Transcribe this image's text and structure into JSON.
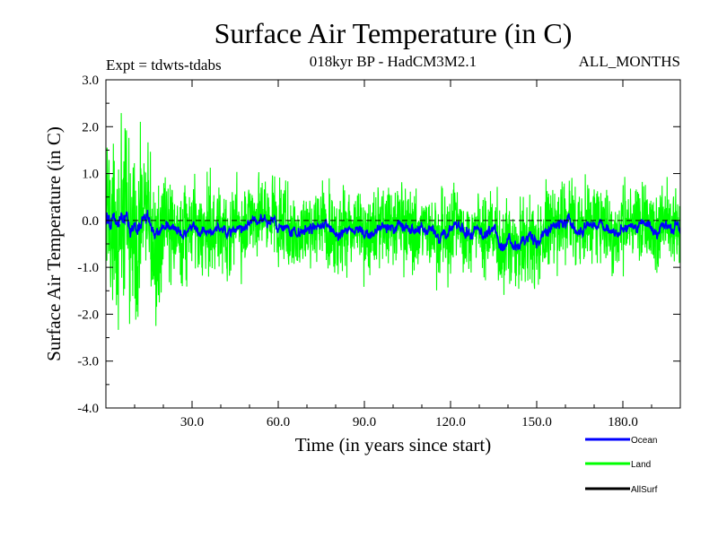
{
  "chart_data": {
    "type": "line",
    "title": "Surface Air Temperature (in C)",
    "subtitle_left": "Expt = tdwts-tdabs",
    "subtitle_center": "018kyr BP - HadCM3M2.1",
    "subtitle_right": "ALL_MONTHS",
    "xlabel": "Time (in years since start)",
    "ylabel": "Surface Air Temperature (in C)",
    "xlim": [
      0,
      200
    ],
    "ylim": [
      -4.0,
      3.0
    ],
    "xticks": [
      30,
      60,
      90,
      120,
      150,
      180
    ],
    "xtick_labels": [
      "30.0",
      "60.0",
      "90.0",
      "120.0",
      "150.0",
      "180.0"
    ],
    "yticks": [
      -4,
      -3,
      -2,
      -1,
      0,
      1,
      2,
      3
    ],
    "ytick_labels": [
      "-4.0",
      "-3.0",
      "-2.0",
      "-1.0",
      "0.0",
      "1.0",
      "2.0",
      "3.0"
    ],
    "zero_line": 0.0,
    "legend_position": "bottom-right",
    "series": [
      {
        "name": "Ocean",
        "color": "#0000ff",
        "values_note": "monthly values, amplitude ~0.3",
        "envelope": [
          {
            "x": 0,
            "mean": -0.1,
            "amp": 0.5
          },
          {
            "x": 15,
            "mean": -0.1,
            "amp": 0.35
          },
          {
            "x": 30,
            "mean": -0.2,
            "amp": 0.25
          },
          {
            "x": 60,
            "mean": -0.2,
            "amp": 0.3
          },
          {
            "x": 90,
            "mean": -0.15,
            "amp": 0.3
          },
          {
            "x": 120,
            "mean": -0.2,
            "amp": 0.3
          },
          {
            "x": 150,
            "mean": -0.3,
            "amp": 0.35
          },
          {
            "x": 180,
            "mean": -0.1,
            "amp": 0.3
          },
          {
            "x": 200,
            "mean": -0.15,
            "amp": 0.3
          }
        ]
      },
      {
        "name": "Land",
        "color": "#00ff00",
        "values_note": "monthly values, amplitude ~0.8",
        "envelope": [
          {
            "x": 0,
            "mean": -0.3,
            "amp": 2.3
          },
          {
            "x": 15,
            "mean": -0.2,
            "amp": 1.9
          },
          {
            "x": 25,
            "mean": -0.2,
            "amp": 1.0
          },
          {
            "x": 60,
            "mean": -0.2,
            "amp": 0.9
          },
          {
            "x": 90,
            "mean": -0.1,
            "amp": 0.9
          },
          {
            "x": 120,
            "mean": -0.2,
            "amp": 0.9
          },
          {
            "x": 150,
            "mean": -0.3,
            "amp": 1.0
          },
          {
            "x": 180,
            "mean": 0.0,
            "amp": 0.9
          },
          {
            "x": 200,
            "mean": -0.2,
            "amp": 0.9
          }
        ]
      },
      {
        "name": "AllSurf",
        "color": "#000000",
        "values_note": "legend only"
      }
    ]
  }
}
